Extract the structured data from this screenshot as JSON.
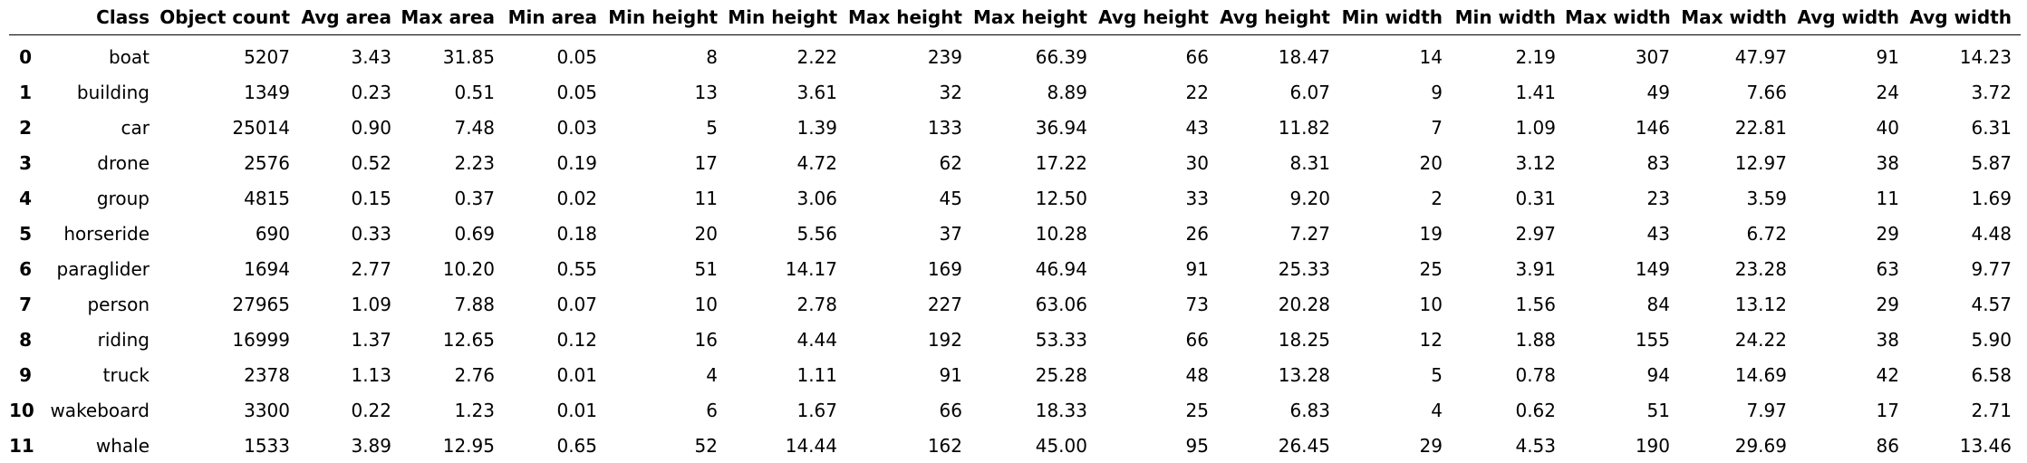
{
  "columns": [
    "",
    "Class",
    "Object count",
    "Avg area",
    "Max area",
    "Min area",
    "Min height",
    "Min height",
    "Max height",
    "Max height",
    "Avg height",
    "Avg height",
    "Min width",
    "Min width",
    "Max width",
    "Max width",
    "Avg width",
    "Avg width"
  ],
  "rows": [
    [
      "0",
      "boat",
      "5207",
      "3.43",
      "31.85",
      "0.05",
      "8",
      "2.22",
      "239",
      "66.39",
      "66",
      "18.47",
      "14",
      "2.19",
      "307",
      "47.97",
      "91",
      "14.23"
    ],
    [
      "1",
      "building",
      "1349",
      "0.23",
      "0.51",
      "0.05",
      "13",
      "3.61",
      "32",
      "8.89",
      "22",
      "6.07",
      "9",
      "1.41",
      "49",
      "7.66",
      "24",
      "3.72"
    ],
    [
      "2",
      "car",
      "25014",
      "0.90",
      "7.48",
      "0.03",
      "5",
      "1.39",
      "133",
      "36.94",
      "43",
      "11.82",
      "7",
      "1.09",
      "146",
      "22.81",
      "40",
      "6.31"
    ],
    [
      "3",
      "drone",
      "2576",
      "0.52",
      "2.23",
      "0.19",
      "17",
      "4.72",
      "62",
      "17.22",
      "30",
      "8.31",
      "20",
      "3.12",
      "83",
      "12.97",
      "38",
      "5.87"
    ],
    [
      "4",
      "group",
      "4815",
      "0.15",
      "0.37",
      "0.02",
      "11",
      "3.06",
      "45",
      "12.50",
      "33",
      "9.20",
      "2",
      "0.31",
      "23",
      "3.59",
      "11",
      "1.69"
    ],
    [
      "5",
      "horseride",
      "690",
      "0.33",
      "0.69",
      "0.18",
      "20",
      "5.56",
      "37",
      "10.28",
      "26",
      "7.27",
      "19",
      "2.97",
      "43",
      "6.72",
      "29",
      "4.48"
    ],
    [
      "6",
      "paraglider",
      "1694",
      "2.77",
      "10.20",
      "0.55",
      "51",
      "14.17",
      "169",
      "46.94",
      "91",
      "25.33",
      "25",
      "3.91",
      "149",
      "23.28",
      "63",
      "9.77"
    ],
    [
      "7",
      "person",
      "27965",
      "1.09",
      "7.88",
      "0.07",
      "10",
      "2.78",
      "227",
      "63.06",
      "73",
      "20.28",
      "10",
      "1.56",
      "84",
      "13.12",
      "29",
      "4.57"
    ],
    [
      "8",
      "riding",
      "16999",
      "1.37",
      "12.65",
      "0.12",
      "16",
      "4.44",
      "192",
      "53.33",
      "66",
      "18.25",
      "12",
      "1.88",
      "155",
      "24.22",
      "38",
      "5.90"
    ],
    [
      "9",
      "truck",
      "2378",
      "1.13",
      "2.76",
      "0.01",
      "4",
      "1.11",
      "91",
      "25.28",
      "48",
      "13.28",
      "5",
      "0.78",
      "94",
      "14.69",
      "42",
      "6.58"
    ],
    [
      "10",
      "wakeboard",
      "3300",
      "0.22",
      "1.23",
      "0.01",
      "6",
      "1.67",
      "66",
      "18.33",
      "25",
      "6.83",
      "4",
      "0.62",
      "51",
      "7.97",
      "17",
      "2.71"
    ],
    [
      "11",
      "whale",
      "1533",
      "3.89",
      "12.95",
      "0.65",
      "52",
      "14.44",
      "162",
      "45.00",
      "95",
      "26.45",
      "29",
      "4.53",
      "190",
      "29.69",
      "86",
      "13.46"
    ]
  ]
}
